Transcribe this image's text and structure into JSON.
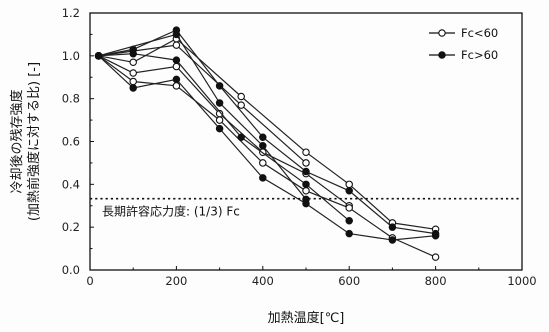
{
  "chart_data": {
    "type": "line",
    "xlabel": "加熱温度[℃]",
    "ylabel_line1": "冷却後の残存強度",
    "ylabel_line2": "(加熱前強度に対する比) [-]",
    "xlim": [
      0,
      1000
    ],
    "ylim": [
      0,
      1.2
    ],
    "x_ticks": [
      "0",
      "200",
      "400",
      "600",
      "800",
      "1000"
    ],
    "y_ticks": [
      "0.0",
      "0.2",
      "0.4",
      "0.6",
      "0.8",
      "1.0",
      "1.2"
    ],
    "grid": false,
    "legend_position": "top-right",
    "legend": [
      {
        "label": "Fc<60",
        "marker": "open-circle"
      },
      {
        "label": "Fc>60",
        "marker": "filled-circle"
      }
    ],
    "annotation": {
      "text": "長期許容応力度: (1/3) Fc",
      "y": 0.333,
      "line_style": "dotted"
    },
    "series": [
      {
        "group": "Fc<60",
        "marker": "open",
        "x": [
          20,
          100,
          200,
          350,
          500,
          600,
          700,
          800
        ],
        "y": [
          1.0,
          0.97,
          1.08,
          0.81,
          0.55,
          0.4,
          0.22,
          0.19
        ]
      },
      {
        "group": "Fc<60",
        "marker": "open",
        "x": [
          20,
          100,
          200,
          300,
          400,
          500,
          600
        ],
        "y": [
          1.0,
          0.92,
          0.95,
          0.73,
          0.55,
          0.45,
          0.3
        ]
      },
      {
        "group": "Fc<60",
        "marker": "open",
        "x": [
          20,
          100,
          200,
          300,
          400,
          500,
          600,
          700,
          800
        ],
        "y": [
          1.0,
          0.88,
          0.86,
          0.7,
          0.5,
          0.37,
          0.29,
          0.15,
          0.06
        ]
      },
      {
        "group": "Fc<60",
        "marker": "open",
        "x": [
          20,
          200,
          350,
          500
        ],
        "y": [
          1.0,
          1.05,
          0.77,
          0.5
        ]
      },
      {
        "group": "Fc>60",
        "marker": "filled",
        "x": [
          20,
          100,
          200,
          300,
          400,
          500,
          600,
          700,
          800
        ],
        "y": [
          1.0,
          1.03,
          1.12,
          0.86,
          0.62,
          0.46,
          0.37,
          0.2,
          0.17
        ]
      },
      {
        "group": "Fc>60",
        "marker": "filled",
        "x": [
          20,
          100,
          200,
          300,
          400,
          500,
          600,
          700,
          800
        ],
        "y": [
          1.0,
          0.85,
          0.89,
          0.66,
          0.43,
          0.31,
          0.17,
          0.14,
          0.16
        ]
      },
      {
        "group": "Fc>60",
        "marker": "filled",
        "x": [
          20,
          100,
          200,
          350,
          500,
          600
        ],
        "y": [
          1.0,
          1.01,
          0.98,
          0.62,
          0.4,
          0.23
        ]
      },
      {
        "group": "Fc>60",
        "marker": "filled",
        "x": [
          20,
          200,
          300,
          400,
          500
        ],
        "y": [
          1.0,
          1.1,
          0.78,
          0.58,
          0.33
        ]
      }
    ]
  }
}
